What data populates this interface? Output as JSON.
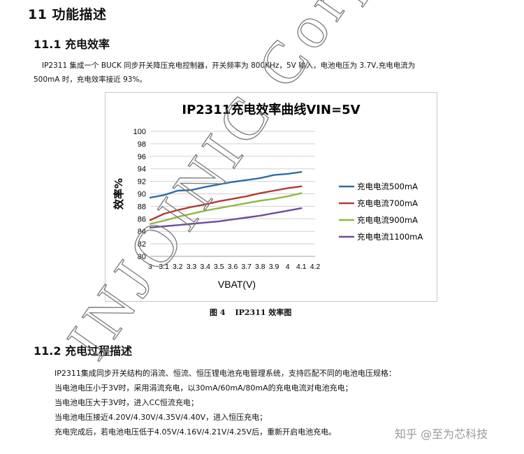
{
  "section_title": "11 功能描述",
  "sub1_title": "11.1  充电效率",
  "para1": {
    "line1": "IP2311 集成一个 BUCK 同步开关降压充电控制器，开关频率为 800KHz，5V 输入，电池电压为 3.7V,充电电流为",
    "line2": "500mA 时，充电效率接近 93%。"
  },
  "chart_data": {
    "type": "line",
    "title": "IP2311充电效率曲线VIN=5V",
    "xlabel": "VBAT(V)",
    "ylabel": "效率%",
    "x_tick_labels": [
      "3",
      "3.1",
      "3.2",
      "3.3",
      "3.4",
      "3.5",
      "3.6",
      "3.7",
      "3.8",
      "3.9",
      "4",
      "4.1",
      "4.2"
    ],
    "y_ticks": [
      80,
      82,
      84,
      86,
      88,
      90,
      92,
      94,
      96,
      98,
      100
    ],
    "xlim": [
      3.0,
      4.2
    ],
    "ylim": [
      80,
      100
    ],
    "grid": true,
    "legend_position": "right",
    "x": [
      3.0,
      3.1,
      3.2,
      3.3,
      3.4,
      3.5,
      3.6,
      3.7,
      3.8,
      3.9,
      4.0,
      4.1
    ],
    "series": [
      {
        "name": "充电电流500mA",
        "color": "#2e6ea6",
        "values": [
          89.4,
          89.8,
          90.5,
          90.6,
          91.1,
          91.5,
          91.9,
          92.2,
          92.5,
          93.0,
          93.2,
          93.5
        ]
      },
      {
        "name": "充电电流700mA",
        "color": "#b03a36",
        "values": [
          85.8,
          86.8,
          87.4,
          87.9,
          88.3,
          88.8,
          89.2,
          89.6,
          90.1,
          90.5,
          90.9,
          91.2
        ]
      },
      {
        "name": "充电电流900mA",
        "color": "#90b83e",
        "values": [
          85.2,
          85.7,
          86.3,
          86.8,
          87.3,
          87.7,
          88.1,
          88.5,
          88.9,
          89.2,
          89.6,
          90.1
        ]
      },
      {
        "name": "充电电流1100mA",
        "color": "#6b4e9b",
        "values": [
          84.6,
          84.8,
          85.0,
          85.2,
          85.4,
          85.6,
          85.9,
          86.2,
          86.5,
          86.9,
          87.3,
          87.7
        ]
      }
    ]
  },
  "caption": {
    "label": "图 4",
    "text": "IP2311 效率图"
  },
  "sub2_title": "11.2 充电过程描述",
  "para2": [
    "IP2311集成同步开关结构的涓流、恒流、恒压锂电池充电管理系统，支持匹配不同的电池电压规格：",
    "当电池电压小于3V时，采用涓流充电，以30mA/60mA/80mA的充电电流对电池充电；",
    "当电池电压大于3V时，进入CC恒流充电；",
    "当电池电压接近4.20V/4.30V/4.35V/4.40V，进入恒压充电；",
    "充电完成后，若电池电压低于4.05V/4.16V/4.21V/4.25V后，重新开启电池充电。"
  ],
  "watermark": "INJOINIC Corp.",
  "credit": "知乎 @至为芯科技"
}
